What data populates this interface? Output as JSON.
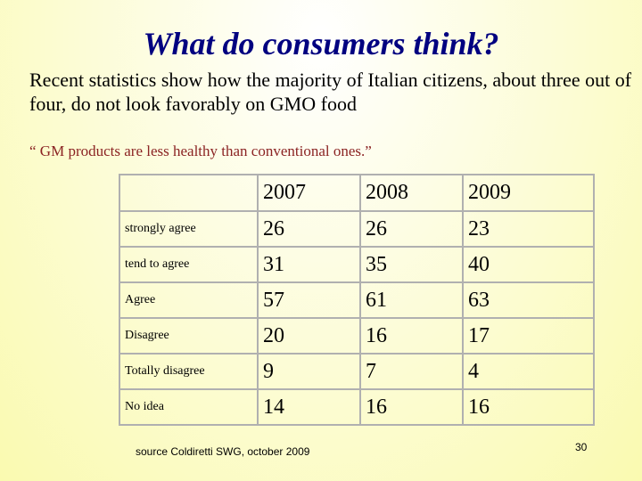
{
  "slide": {
    "title": "What do consumers think?",
    "intro": "Recent statistics show how the majority of Italian citizens, about three out of four, do not look favorably on GMO food",
    "quote": "“ GM products are less healthy than conventional ones.”",
    "source": "source Coldiretti SWG, october 2009",
    "page_number": "30"
  },
  "table": {
    "years": [
      "2007",
      "2008",
      "2009"
    ],
    "rows": [
      {
        "label": "strongly agree",
        "values": [
          "26",
          "26",
          "23"
        ]
      },
      {
        "label": "tend to agree",
        "values": [
          "31",
          "35",
          "40"
        ]
      },
      {
        "label": "Agree",
        "values": [
          "57",
          "61",
          "63"
        ]
      },
      {
        "label": "Disagree",
        "values": [
          "20",
          "16",
          "17"
        ]
      },
      {
        "label": "Totally disagree",
        "values": [
          "9",
          "7",
          "4"
        ]
      },
      {
        "label": "No idea",
        "values": [
          "14",
          "16",
          "16"
        ]
      }
    ]
  },
  "colors": {
    "title": "#000080",
    "quote": "#8b2323",
    "background": "#fafab0",
    "table_border": "#b0b0b0"
  }
}
